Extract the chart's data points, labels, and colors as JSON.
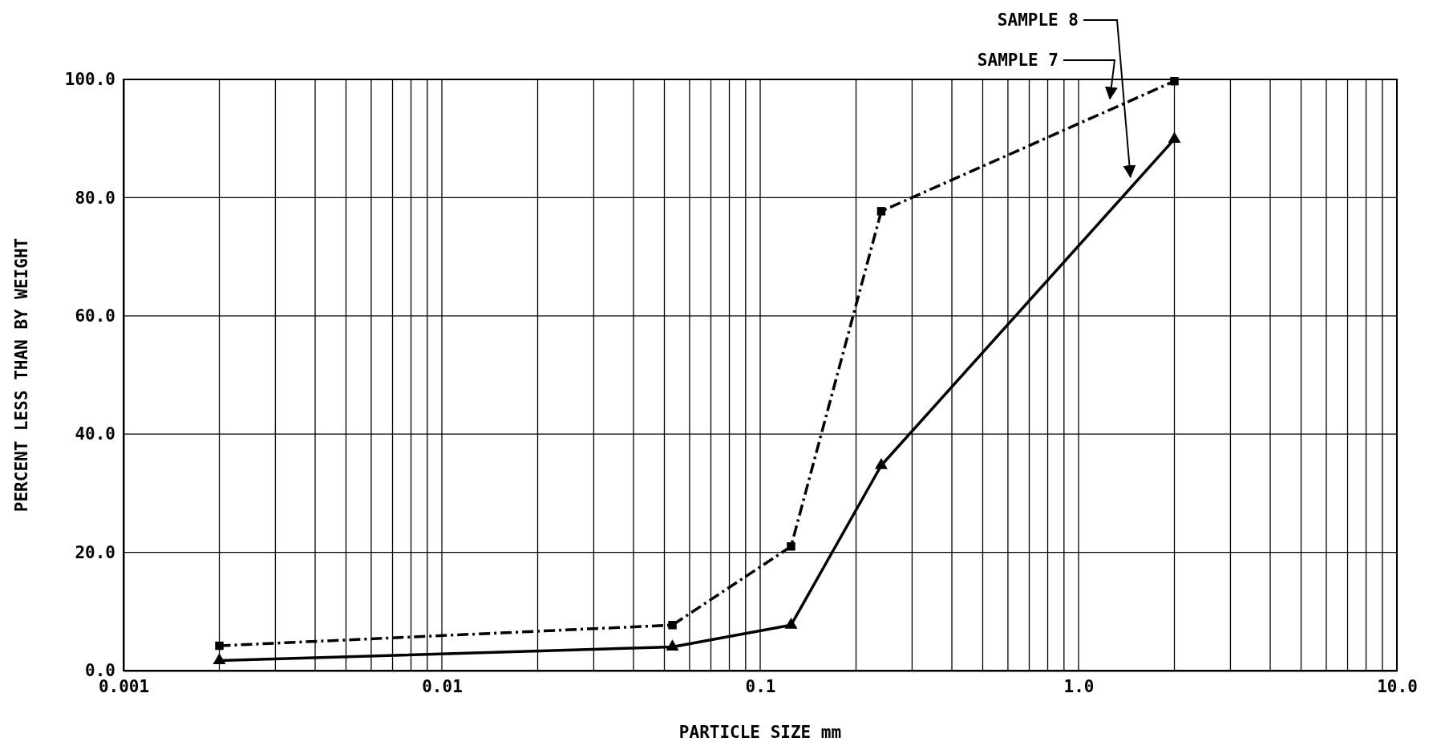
{
  "chart_data": {
    "type": "line",
    "xlabel": "PARTICLE SIZE mm",
    "ylabel": "PERCENT LESS THAN BY WEIGHT",
    "log": "x",
    "grid": true,
    "xlim": [
      0.001,
      10
    ],
    "xticks": [
      0.001,
      0.01,
      0.1,
      {
        "value": 1,
        "label": "1.0"
      },
      {
        "value": 10,
        "label": "10.0"
      }
    ],
    "ylim": [
      0,
      100
    ],
    "yticks": [
      {
        "value": 0,
        "label": "0.0"
      },
      {
        "value": 20,
        "label": "20.0"
      },
      {
        "value": 40,
        "label": "40.0"
      },
      {
        "value": 60,
        "label": "60.0"
      },
      {
        "value": 80,
        "label": "80.0"
      },
      {
        "value": 100,
        "label": "100.0"
      }
    ],
    "x": [
      0.002,
      0.053,
      0.125,
      0.24,
      2.0
    ],
    "series": [
      {
        "name": "SAMPLE 7",
        "color": "#000000",
        "marker": "square",
        "line_style": "dashed",
        "values": [
          4.2,
          7.7,
          21.0,
          77.7,
          99.7
        ]
      },
      {
        "name": "SAMPLE 8",
        "color": "#000000",
        "marker": "triangle",
        "line_style": "solid",
        "values": [
          1.7,
          4.0,
          7.7,
          34.7,
          89.9
        ]
      }
    ]
  }
}
